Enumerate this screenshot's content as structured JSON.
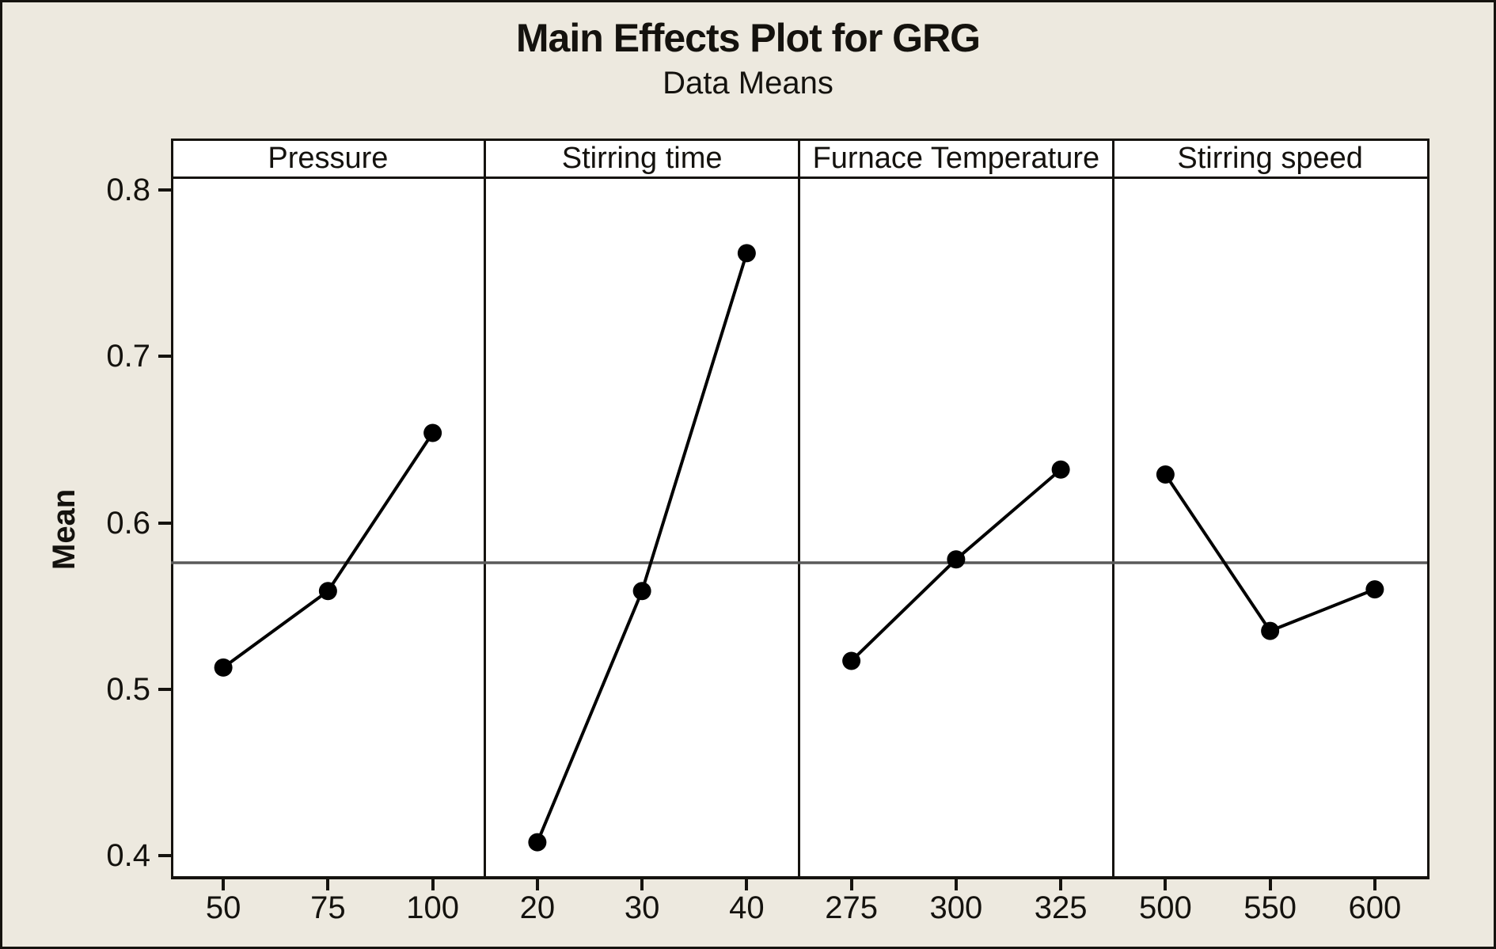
{
  "figure": {
    "title": "Main Effects Plot for GRG",
    "subtitle": "Data Means",
    "ylabel": "Mean"
  },
  "chart_data": {
    "type": "line",
    "title": "Main Effects Plot for GRG",
    "subtitle": "Data Means",
    "ylabel": "Mean",
    "ylim": [
      0.4,
      0.8
    ],
    "yticks": [
      "0.8",
      "0.7",
      "0.6",
      "0.5",
      "0.4"
    ],
    "ytick_values": [
      0.8,
      0.7,
      0.6,
      0.5,
      0.4
    ],
    "grid": false,
    "legend": "none",
    "reference_line_mean": 0.576,
    "panels": [
      {
        "label": "Pressure",
        "categories": [
          "50",
          "75",
          "100"
        ],
        "values": [
          0.513,
          0.559,
          0.654
        ]
      },
      {
        "label": "Stirring time",
        "categories": [
          "20",
          "30",
          "40"
        ],
        "values": [
          0.408,
          0.559,
          0.762
        ]
      },
      {
        "label": "Furnace Temperature",
        "categories": [
          "275",
          "300",
          "325"
        ],
        "values": [
          0.517,
          0.578,
          0.632
        ]
      },
      {
        "label": "Stirring speed",
        "categories": [
          "500",
          "550",
          "600"
        ],
        "values": [
          0.629,
          0.535,
          0.56
        ]
      }
    ],
    "colors": {
      "background": "#EDE9DF",
      "panel_background": "#FFFFFF",
      "border": "#15130f",
      "series_line": "#000000",
      "marker": "#000000",
      "reference_line": "#5a5a5a"
    }
  }
}
